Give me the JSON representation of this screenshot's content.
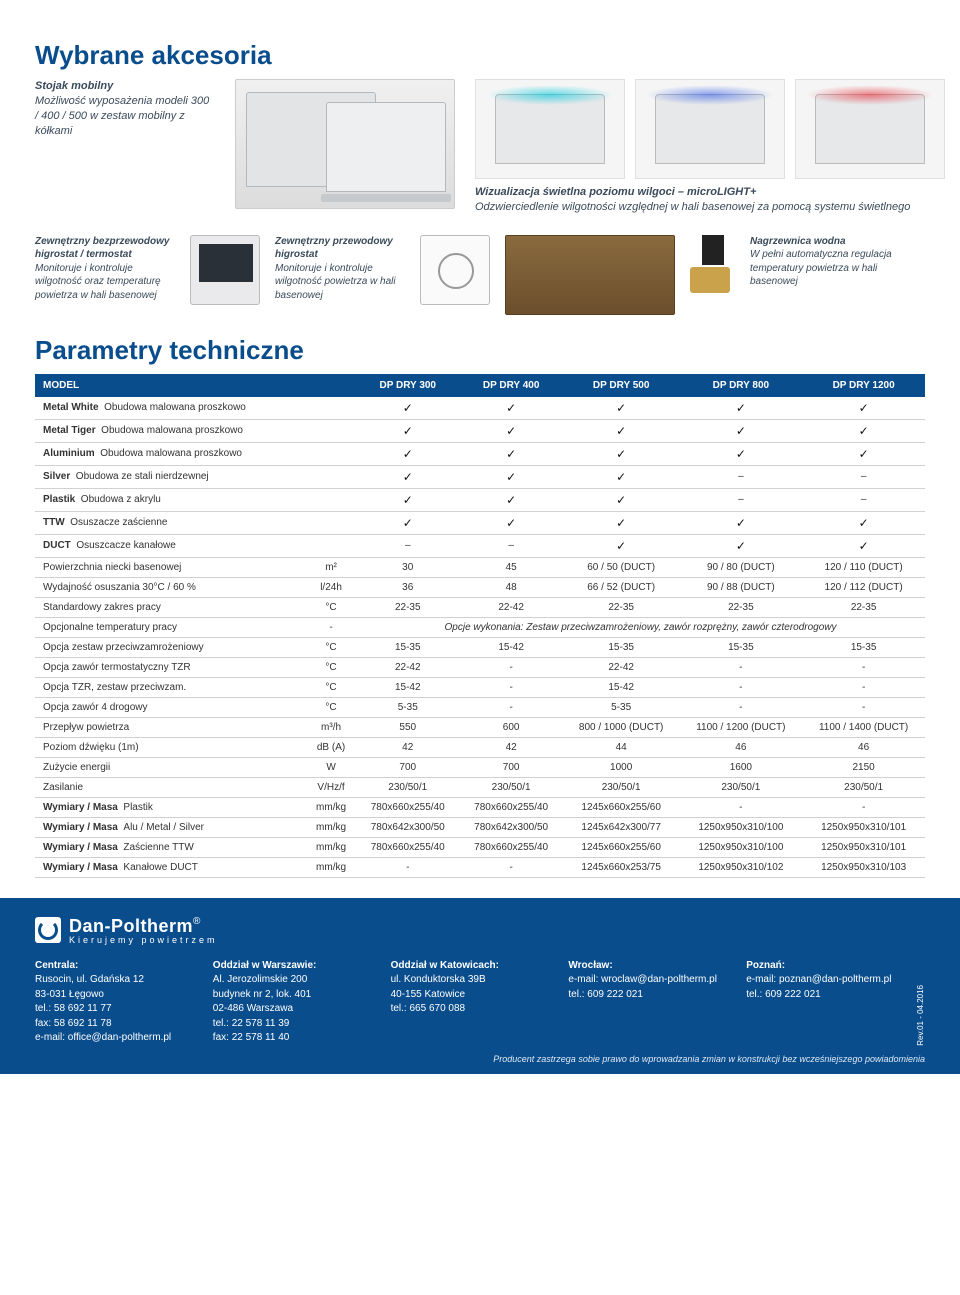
{
  "titles": {
    "main": "Wybrane akcesoria",
    "params": "Parametry techniczne"
  },
  "accessories": {
    "mobile_stand": {
      "title": "Stojak mobilny",
      "desc": "Możliwość wyposażenia modeli 300 / 400 / 500 w zestaw mobilny z kółkami"
    },
    "microlight": {
      "title": "Wizualizacja świetlna poziomu wilgoci – microLIGHT+",
      "desc": "Odzwierciedlenie wilgotności względnej w hali basenowej za pomocą systemu świetlnego"
    },
    "wireless_hygrostat": {
      "title": "Zewnętrzny bezprzewodowy higrostat / termostat",
      "desc": "Monitoruje i kontroluje wilgotność oraz temperaturę powietrza w hali basenowej"
    },
    "wired_hygrostat": {
      "title": "Zewnętrzny przewodowy higrostat",
      "desc": "Monitoruje i kontroluje wilgotność powietrza w hali basenowej"
    },
    "water_heater": {
      "title": "Nagrzewnica wodna",
      "desc": "W pełni automatyczna regulacja temperatury powietrza w hali basenowej"
    }
  },
  "table": {
    "header": [
      "MODEL",
      "DP DRY 300",
      "DP DRY 400",
      "DP DRY 500",
      "DP DRY 800",
      "DP DRY 1200"
    ],
    "rows": [
      {
        "label": "Metal White",
        "sub": "Obudowa malowana proszkowo",
        "unit": "",
        "vals": [
          "✓",
          "✓",
          "✓",
          "✓",
          "✓"
        ]
      },
      {
        "label": "Metal Tiger",
        "sub": "Obudowa malowana proszkowo",
        "unit": "",
        "vals": [
          "✓",
          "✓",
          "✓",
          "✓",
          "✓"
        ]
      },
      {
        "label": "Aluminium",
        "sub": "Obudowa malowana proszkowo",
        "unit": "",
        "vals": [
          "✓",
          "✓",
          "✓",
          "✓",
          "✓"
        ]
      },
      {
        "label": "Silver",
        "sub": "Obudowa ze stali nierdzewnej",
        "unit": "",
        "vals": [
          "✓",
          "✓",
          "✓",
          "–",
          "–"
        ]
      },
      {
        "label": "Plastik",
        "sub": "Obudowa z akrylu",
        "unit": "",
        "vals": [
          "✓",
          "✓",
          "✓",
          "–",
          "–"
        ]
      },
      {
        "label": "TTW",
        "sub": "Osuszacze zaścienne",
        "unit": "",
        "vals": [
          "✓",
          "✓",
          "✓",
          "✓",
          "✓"
        ]
      },
      {
        "label": "DUCT",
        "sub": "Osuszcacze kanałowe",
        "unit": "",
        "vals": [
          "–",
          "–",
          "✓",
          "✓",
          "✓"
        ]
      },
      {
        "label": "Powierzchnia niecki basenowej",
        "sub": "",
        "unit": "m²",
        "vals": [
          "30",
          "45",
          "60 / 50 (DUCT)",
          "90 / 80 (DUCT)",
          "120 / 110 (DUCT)"
        ]
      },
      {
        "label": "Wydajność osuszania 30°C / 60 %",
        "sub": "",
        "unit": "l/24h",
        "vals": [
          "36",
          "48",
          "66 / 52 (DUCT)",
          "90 / 88 (DUCT)",
          "120 / 112 (DUCT)"
        ]
      },
      {
        "label": "Standardowy zakres pracy",
        "sub": "",
        "unit": "°C",
        "vals": [
          "22-35",
          "22-42",
          "22-35",
          "22-35",
          "22-35"
        ]
      },
      {
        "label": "Opcjonalne temperatury pracy",
        "sub": "",
        "unit": "-",
        "merged": "Opcje wykonania: Zestaw przeciwzamrożeniowy, zawór rozprężny, zawór czterodrogowy"
      },
      {
        "label": "Opcja zestaw przeciwzamrożeniowy",
        "sub": "",
        "unit": "°C",
        "vals": [
          "15-35",
          "15-42",
          "15-35",
          "15-35",
          "15-35"
        ]
      },
      {
        "label": "Opcja zawór termostatyczny TZR",
        "sub": "",
        "unit": "°C",
        "vals": [
          "22-42",
          "-",
          "22-42",
          "-",
          "-"
        ]
      },
      {
        "label": "Opcja TZR, zestaw przeciwzam.",
        "sub": "",
        "unit": "°C",
        "vals": [
          "15-42",
          "-",
          "15-42",
          "-",
          "-"
        ]
      },
      {
        "label": "Opcja zawór 4 drogowy",
        "sub": "",
        "unit": "°C",
        "vals": [
          "5-35",
          "-",
          "5-35",
          "-",
          "-"
        ]
      },
      {
        "label": "Przepływ powietrza",
        "sub": "",
        "unit": "m³/h",
        "vals": [
          "550",
          "600",
          "800 / 1000 (DUCT)",
          "1100 / 1200 (DUCT)",
          "1100 / 1400 (DUCT)"
        ]
      },
      {
        "label": "Poziom dźwięku (1m)",
        "sub": "",
        "unit": "dB (A)",
        "vals": [
          "42",
          "42",
          "44",
          "46",
          "46"
        ]
      },
      {
        "label": "Zużycie energii",
        "sub": "",
        "unit": "W",
        "vals": [
          "700",
          "700",
          "1000",
          "1600",
          "2150"
        ]
      },
      {
        "label": "Zasilanie",
        "sub": "",
        "unit": "V/Hz/f",
        "vals": [
          "230/50/1",
          "230/50/1",
          "230/50/1",
          "230/50/1",
          "230/50/1"
        ]
      },
      {
        "label": "Wymiary / Masa",
        "sub": "Plastik",
        "unit": "mm/kg",
        "vals": [
          "780x660x255/40",
          "780x660x255/40",
          "1245x660x255/60",
          "-",
          "-"
        ]
      },
      {
        "label": "Wymiary / Masa",
        "sub": "Alu / Metal / Silver",
        "unit": "mm/kg",
        "vals": [
          "780x642x300/50",
          "780x642x300/50",
          "1245x642x300/77",
          "1250x950x310/100",
          "1250x950x310/101"
        ]
      },
      {
        "label": "Wymiary / Masa",
        "sub": "Zaścienne TTW",
        "unit": "mm/kg",
        "vals": [
          "780x660x255/40",
          "780x660x255/40",
          "1245x660x255/60",
          "1250x950x310/100",
          "1250x950x310/101"
        ]
      },
      {
        "label": "Wymiary / Masa",
        "sub": "Kanałowe DUCT",
        "unit": "mm/kg",
        "vals": [
          "-",
          "-",
          "1245x660x253/75",
          "1250x950x310/102",
          "1250x950x310/103"
        ]
      }
    ]
  },
  "footer": {
    "logo_name": "Dan-Poltherm",
    "logo_tag": "Kierujemy powietrzem",
    "cols": [
      {
        "h": "Centrala:",
        "lines": [
          "Rusocin, ul. Gdańska 12",
          "83-031 Łęgowo",
          "tel.: 58 692 11 77",
          "fax: 58 692 11 78",
          "e-mail: office@dan-poltherm.pl"
        ]
      },
      {
        "h": "Oddział w Warszawie:",
        "lines": [
          "Al. Jerozolimskie 200",
          "budynek nr 2, lok. 401",
          "02-486 Warszawa",
          "tel.: 22 578 11 39",
          "fax: 22 578 11 40"
        ]
      },
      {
        "h": "Oddział w Katowicach:",
        "lines": [
          "ul. Konduktorska 39B",
          "40-155 Katowice",
          "tel.: 665 670 088"
        ]
      },
      {
        "h": "Wrocław:",
        "lines": [
          "e-mail: wroclaw@dan-poltherm.pl",
          "tel.: 609 222 021"
        ]
      },
      {
        "h": "Poznań:",
        "lines": [
          "e-mail: poznan@dan-poltherm.pl",
          "tel.: 609 222 021"
        ]
      }
    ],
    "rev": "Rev.01 - 04.2016",
    "disclaimer": "Producent zastrzega sobie prawo do wprowadzania zmian w konstrukcji bez wcześniejszego powiadomienia"
  }
}
